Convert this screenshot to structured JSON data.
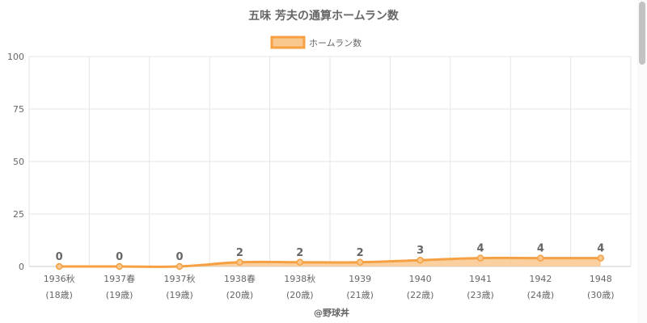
{
  "chart_data": {
    "type": "area",
    "title": "五味 芳夫の通算ホームラン数",
    "legend": {
      "label": "ホームラン数",
      "position": "top-center"
    },
    "categories": [
      "1936秋",
      "1937春",
      "1937秋",
      "1938春",
      "1938秋",
      "1939",
      "1940",
      "1941",
      "1942",
      "1948"
    ],
    "category_ages": [
      "(18歳)",
      "(19歳)",
      "(19歳)",
      "(20歳)",
      "(20歳)",
      "(21歳)",
      "(22歳)",
      "(23歳)",
      "(24歳)",
      "(30歳)"
    ],
    "series": [
      {
        "name": "ホームラン数",
        "values": [
          0,
          0,
          0,
          2,
          2,
          2,
          3,
          4,
          4,
          4
        ]
      }
    ],
    "ylim": [
      0,
      100
    ],
    "yticks": [
      0,
      25,
      50,
      75,
      100
    ],
    "grid": true,
    "colors": {
      "line": "#f5a043",
      "fill": "#f9c88f",
      "grid": "#e6e6e6",
      "axis_text": "#666666"
    }
  },
  "footer": {
    "credit": "@野球丼"
  }
}
